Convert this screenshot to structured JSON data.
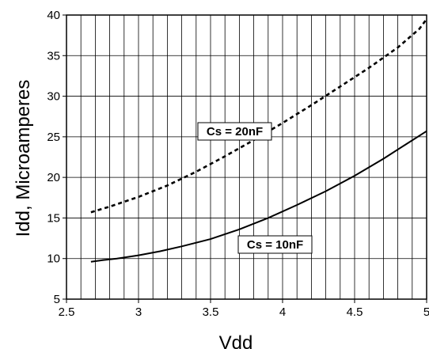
{
  "chart_data": {
    "type": "line",
    "title": "",
    "xlabel": "Vdd",
    "ylabel": "Idd, Microamperes",
    "xlim": [
      2.5,
      5
    ],
    "ylim": [
      5,
      40
    ],
    "x_ticks": [
      "2.5",
      "3",
      "3.5",
      "4",
      "4.5",
      "5"
    ],
    "y_ticks": [
      "5",
      "10",
      "15",
      "20",
      "25",
      "30",
      "35",
      "40"
    ],
    "grid": true,
    "legend": "none",
    "series": [
      {
        "name": "Cs = 10nF",
        "style": "solid",
        "x": [
          2.67,
          2.75,
          2.85,
          3.0,
          3.15,
          3.3,
          3.5,
          3.7,
          3.9,
          4.1,
          4.3,
          4.5,
          4.7,
          4.85,
          5.0
        ],
        "y": [
          9.6,
          9.8,
          10.0,
          10.4,
          10.9,
          11.5,
          12.4,
          13.6,
          15.0,
          16.6,
          18.3,
          20.2,
          22.3,
          24.0,
          25.7
        ]
      },
      {
        "name": "Cs = 20nF",
        "style": "dashed",
        "x": [
          2.67,
          2.8,
          3.0,
          3.2,
          3.4,
          3.6,
          3.8,
          4.0,
          4.2,
          4.4,
          4.6,
          4.8,
          4.95,
          5.0
        ],
        "y": [
          15.7,
          16.4,
          17.6,
          19.0,
          20.7,
          22.6,
          24.6,
          26.7,
          28.9,
          31.2,
          33.5,
          36.0,
          38.3,
          39.5
        ]
      }
    ],
    "annotations": [
      {
        "text": "Cs = 20nF",
        "series": 1
      },
      {
        "text": "Cs = 10nF",
        "series": 0
      }
    ],
    "colors": {
      "line": "#000000",
      "grid": "#000000",
      "background": "#ffffff"
    }
  }
}
